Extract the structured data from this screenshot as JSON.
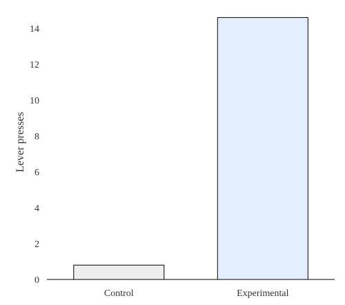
{
  "chart_data": {
    "type": "bar",
    "title": "",
    "xlabel": "",
    "ylabel": "Lever presses",
    "categories": [
      "Control",
      "Experimental"
    ],
    "values": [
      0.8,
      14.6
    ],
    "bar_colors": [
      "#eeeeee",
      "#e3eeff"
    ],
    "bar_edge_color": "#000000",
    "axis_color": "#000000",
    "ylim": [
      0,
      15
    ],
    "yticks": [
      0,
      2,
      4,
      6,
      8,
      10,
      12,
      14
    ],
    "ytick_labels": [
      "0",
      "2",
      "4",
      "6",
      "8",
      "10",
      "12",
      "14"
    ],
    "grid": false,
    "legend": "none"
  }
}
